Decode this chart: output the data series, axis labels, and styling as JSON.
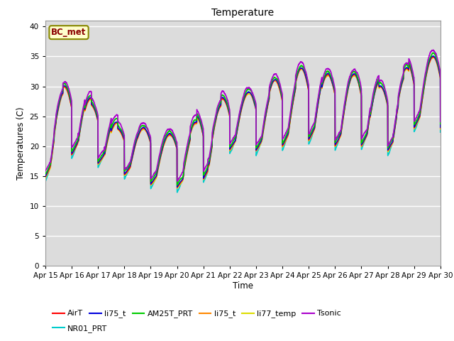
{
  "title": "Temperature",
  "xlabel": "Time",
  "ylabel": "Temperatures (C)",
  "ylim": [
    0,
    41
  ],
  "yticks": [
    0,
    5,
    10,
    15,
    20,
    25,
    30,
    35,
    40
  ],
  "x_labels": [
    "Apr 15",
    "Apr 16",
    "Apr 17",
    "Apr 18",
    "Apr 19",
    "Apr 20",
    "Apr 21",
    "Apr 22",
    "Apr 23",
    "Apr 24",
    "Apr 25",
    "Apr 26",
    "Apr 27",
    "Apr 28",
    "Apr 29",
    "Apr 30"
  ],
  "plot_bg_color": "#dcdcdc",
  "series": {
    "AirT": {
      "color": "#ff0000",
      "lw": 1.0
    },
    "li75_t_b": {
      "color": "#0000dd",
      "lw": 1.0
    },
    "AM25T_PRT": {
      "color": "#00cc00",
      "lw": 1.2
    },
    "li75_t": {
      "color": "#ff8800",
      "lw": 1.0
    },
    "li77_temp": {
      "color": "#dddd00",
      "lw": 1.0
    },
    "Tsonic": {
      "color": "#aa00cc",
      "lw": 1.2
    },
    "NR01_PRT": {
      "color": "#00cccc",
      "lw": 1.2
    }
  },
  "annotation_text": "BC_met",
  "annotation_color": "#8B0000",
  "annotation_bg": "#ffffcc",
  "annotation_border": "#888800",
  "legend_labels": [
    "AirT",
    "li75_t",
    "AM25T_PRT",
    "li75_t",
    "li77_temp",
    "Tsonic",
    "NR01_PRT"
  ],
  "legend_colors": [
    "#ff0000",
    "#0000dd",
    "#00cc00",
    "#ff8800",
    "#dddd00",
    "#aa00cc",
    "#00cccc"
  ]
}
